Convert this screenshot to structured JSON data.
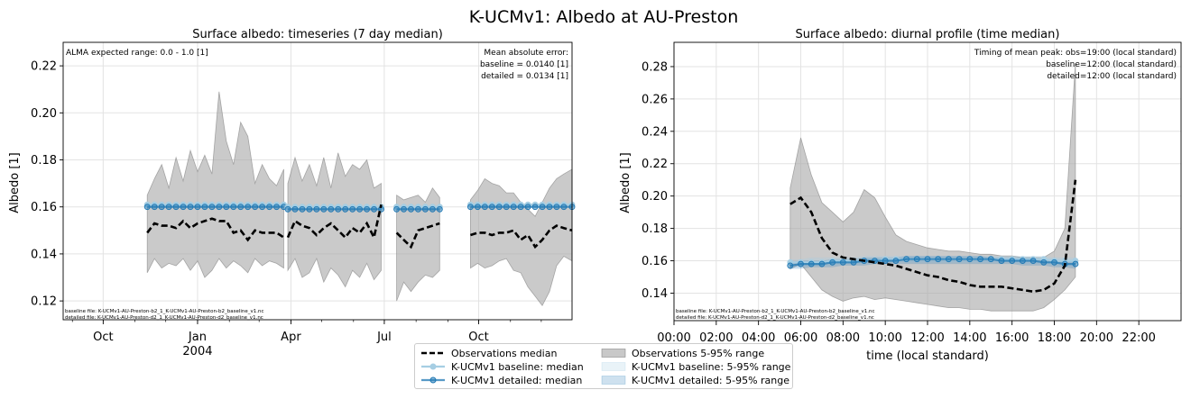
{
  "figure_title": "K-UCMv1: Albedo at AU-Preston",
  "colors": {
    "observation_line": "#000000",
    "observation_band": "#aaaaaa",
    "baseline": "#a6cee3",
    "detailed": "#1f78b4"
  },
  "chart_data": [
    {
      "type": "line",
      "title": "Surface albedo: timeseries (7 day median)",
      "xlabel": "",
      "ylabel": "Albedo [1]",
      "x_range": [
        "2003-08-23",
        "2004-12-31"
      ],
      "ylim": [
        0.112,
        0.23
      ],
      "grid": true,
      "xticks": [
        {
          "date": "2003-10-01",
          "label": "Oct"
        },
        {
          "date": "2004-01-01",
          "label": "Jan",
          "sublabel": "2004"
        },
        {
          "date": "2004-04-01",
          "label": "Apr"
        },
        {
          "date": "2004-07-01",
          "label": "Jul"
        },
        {
          "date": "2004-10-01",
          "label": "Oct"
        }
      ],
      "yticks": [
        0.12,
        0.14,
        0.16,
        0.18,
        0.2,
        0.22
      ],
      "annotations": {
        "range_note": "ALMA expected range: 0.0 - 1.0 [1]",
        "mae_title": "Mean absolute error:",
        "mae_baseline": "baseline = 0.0140 [1]",
        "mae_detailed": "detailed = 0.0134 [1]",
        "file_baseline": "baseline file: K-UCMv1-AU-Preston-b2_1_K-UCMv1-AU-Preston-b2_baseline_v1.nc",
        "file_detailed": "detailed file: K-UCMv1-AU-Preston-d2_1_K-UCMv1-AU-Preston-d2_baseline_v1.nc"
      },
      "segments": [
        {
          "x": [
            "2003-11-13",
            "2003-11-20",
            "2003-11-27",
            "2003-12-04",
            "2003-12-11",
            "2003-12-18",
            "2003-12-25",
            "2004-01-01",
            "2004-01-08",
            "2004-01-15",
            "2004-01-22",
            "2004-01-29",
            "2004-02-05",
            "2004-02-12",
            "2004-02-19",
            "2004-02-26",
            "2004-03-04",
            "2004-03-11",
            "2004-03-18",
            "2004-03-25"
          ],
          "obs_median": [
            0.149,
            0.153,
            0.152,
            0.152,
            0.151,
            0.154,
            0.151,
            0.153,
            0.154,
            0.155,
            0.154,
            0.154,
            0.149,
            0.15,
            0.146,
            0.15,
            0.149,
            0.149,
            0.149,
            0.147
          ],
          "obs_p5": [
            0.132,
            0.138,
            0.134,
            0.136,
            0.135,
            0.138,
            0.133,
            0.137,
            0.13,
            0.133,
            0.138,
            0.134,
            0.137,
            0.135,
            0.132,
            0.138,
            0.135,
            0.137,
            0.136,
            0.134
          ],
          "obs_p95": [
            0.165,
            0.172,
            0.178,
            0.168,
            0.181,
            0.171,
            0.184,
            0.175,
            0.182,
            0.174,
            0.209,
            0.188,
            0.178,
            0.196,
            0.19,
            0.17,
            0.178,
            0.172,
            0.169,
            0.176
          ],
          "baseline_median": [
            0.161,
            0.161,
            0.161,
            0.161,
            0.161,
            0.161,
            0.161,
            0.161,
            0.161,
            0.161,
            0.161,
            0.161,
            0.161,
            0.161,
            0.161,
            0.161,
            0.161,
            0.161,
            0.161,
            0.161
          ],
          "detailed_median": [
            0.16,
            0.16,
            0.16,
            0.16,
            0.16,
            0.16,
            0.16,
            0.16,
            0.16,
            0.16,
            0.16,
            0.16,
            0.16,
            0.16,
            0.16,
            0.16,
            0.16,
            0.16,
            0.16,
            0.16
          ]
        },
        {
          "x": [
            "2004-03-29",
            "2004-04-05",
            "2004-04-12",
            "2004-04-19",
            "2004-04-26",
            "2004-05-03",
            "2004-05-10",
            "2004-05-17",
            "2004-05-24",
            "2004-05-31",
            "2004-06-07",
            "2004-06-14",
            "2004-06-21",
            "2004-06-28"
          ],
          "obs_median": [
            0.147,
            0.154,
            0.152,
            0.151,
            0.148,
            0.151,
            0.153,
            0.15,
            0.147,
            0.151,
            0.149,
            0.153,
            0.147,
            0.161
          ],
          "obs_p5": [
            0.133,
            0.138,
            0.13,
            0.132,
            0.138,
            0.128,
            0.134,
            0.131,
            0.126,
            0.133,
            0.13,
            0.136,
            0.129,
            0.133
          ],
          "obs_p95": [
            0.17,
            0.181,
            0.171,
            0.178,
            0.169,
            0.181,
            0.168,
            0.183,
            0.173,
            0.178,
            0.176,
            0.18,
            0.168,
            0.17
          ],
          "baseline_median": [
            0.16,
            0.16,
            0.16,
            0.16,
            0.16,
            0.16,
            0.16,
            0.16,
            0.16,
            0.16,
            0.16,
            0.16,
            0.16,
            0.16
          ],
          "detailed_median": [
            0.159,
            0.159,
            0.159,
            0.159,
            0.159,
            0.159,
            0.159,
            0.159,
            0.159,
            0.159,
            0.159,
            0.159,
            0.159,
            0.159
          ]
        },
        {
          "x": [
            "2004-07-13",
            "2004-07-20",
            "2004-07-27",
            "2004-08-03",
            "2004-08-10",
            "2004-08-17",
            "2004-08-24"
          ],
          "obs_median": [
            0.149,
            0.146,
            0.143,
            0.15,
            0.151,
            0.152,
            0.153
          ],
          "obs_p5": [
            0.12,
            0.128,
            0.124,
            0.128,
            0.131,
            0.13,
            0.133
          ],
          "obs_p95": [
            0.165,
            0.163,
            0.164,
            0.165,
            0.162,
            0.168,
            0.164
          ],
          "baseline_median": [
            0.16,
            0.16,
            0.16,
            0.16,
            0.16,
            0.16,
            0.16
          ],
          "detailed_median": [
            0.159,
            0.159,
            0.159,
            0.159,
            0.159,
            0.159,
            0.159
          ]
        },
        {
          "x": [
            "2004-09-23",
            "2004-09-30",
            "2004-10-07",
            "2004-10-14",
            "2004-10-21",
            "2004-10-28",
            "2004-11-04",
            "2004-11-11",
            "2004-11-18",
            "2004-11-25",
            "2004-12-02",
            "2004-12-09",
            "2004-12-16",
            "2004-12-23",
            "2004-12-31"
          ],
          "obs_median": [
            0.148,
            0.149,
            0.149,
            0.148,
            0.149,
            0.149,
            0.15,
            0.146,
            0.148,
            0.143,
            0.146,
            0.15,
            0.152,
            0.151,
            0.15
          ],
          "obs_p5": [
            0.134,
            0.136,
            0.134,
            0.135,
            0.137,
            0.138,
            0.133,
            0.132,
            0.126,
            0.122,
            0.118,
            0.124,
            0.135,
            0.139,
            0.137
          ],
          "obs_p95": [
            0.163,
            0.167,
            0.172,
            0.17,
            0.169,
            0.166,
            0.166,
            0.162,
            0.159,
            0.156,
            0.162,
            0.168,
            0.172,
            0.174,
            0.176
          ],
          "baseline_median": [
            0.161,
            0.161,
            0.161,
            0.161,
            0.161,
            0.161,
            0.161,
            0.161,
            0.161,
            0.161,
            0.161,
            0.161,
            0.161,
            0.161,
            0.161
          ],
          "detailed_median": [
            0.16,
            0.16,
            0.16,
            0.16,
            0.16,
            0.16,
            0.16,
            0.16,
            0.16,
            0.16,
            0.16,
            0.16,
            0.16,
            0.16,
            0.16
          ]
        }
      ]
    },
    {
      "type": "line",
      "title": "Surface albedo: diurnal profile (time median)",
      "xlabel": "time (local standard)",
      "ylabel": "Albedo [1]",
      "xlim": [
        0,
        24
      ],
      "ylim": [
        0.123,
        0.295
      ],
      "grid": true,
      "xticks": [
        {
          "x": 0,
          "label": "00:00"
        },
        {
          "x": 2,
          "label": "02:00"
        },
        {
          "x": 4,
          "label": "04:00"
        },
        {
          "x": 6,
          "label": "06:00"
        },
        {
          "x": 8,
          "label": "08:00"
        },
        {
          "x": 10,
          "label": "10:00"
        },
        {
          "x": 12,
          "label": "12:00"
        },
        {
          "x": 14,
          "label": "14:00"
        },
        {
          "x": 16,
          "label": "16:00"
        },
        {
          "x": 18,
          "label": "18:00"
        },
        {
          "x": 20,
          "label": "20:00"
        },
        {
          "x": 22,
          "label": "22:00"
        }
      ],
      "yticks": [
        0.14,
        0.16,
        0.18,
        0.2,
        0.22,
        0.24,
        0.26,
        0.28
      ],
      "annotations": {
        "peak_title": "Timing of mean peak: obs=19:00 (local standard)",
        "peak_baseline": "baseline=12:00 (local standard)",
        "peak_detailed": "detailed=12:00 (local standard)",
        "file_baseline": "baseline file: K-UCMv1-AU-Preston-b2_1_K-UCMv1-AU-Preston-b2_baseline_v1.nc",
        "file_detailed": "detailed file: K-UCMv1-AU-Preston-d2_1_K-UCMv1-AU-Preston-d2_baseline_v1.nc"
      },
      "x": [
        5.5,
        6.0,
        6.5,
        7.0,
        7.5,
        8.0,
        8.5,
        9.0,
        9.5,
        10.0,
        10.5,
        11.0,
        11.5,
        12.0,
        12.5,
        13.0,
        13.5,
        14.0,
        14.5,
        15.0,
        15.5,
        16.0,
        16.5,
        17.0,
        17.5,
        18.0,
        18.5,
        19.0
      ],
      "obs_median": [
        0.195,
        0.199,
        0.19,
        0.174,
        0.165,
        0.162,
        0.161,
        0.16,
        0.159,
        0.158,
        0.157,
        0.155,
        0.153,
        0.151,
        0.15,
        0.148,
        0.147,
        0.145,
        0.144,
        0.144,
        0.144,
        0.143,
        0.142,
        0.141,
        0.142,
        0.146,
        0.157,
        0.21
      ],
      "obs_p5": [
        0.155,
        0.158,
        0.15,
        0.142,
        0.138,
        0.135,
        0.137,
        0.138,
        0.136,
        0.137,
        0.136,
        0.135,
        0.134,
        0.133,
        0.132,
        0.131,
        0.131,
        0.13,
        0.13,
        0.129,
        0.129,
        0.129,
        0.129,
        0.129,
        0.131,
        0.136,
        0.142,
        0.15
      ],
      "obs_p95": [
        0.205,
        0.236,
        0.213,
        0.196,
        0.19,
        0.184,
        0.19,
        0.204,
        0.199,
        0.187,
        0.176,
        0.172,
        0.17,
        0.168,
        0.167,
        0.166,
        0.166,
        0.165,
        0.164,
        0.164,
        0.163,
        0.163,
        0.162,
        0.162,
        0.162,
        0.166,
        0.18,
        0.282
      ],
      "baseline_median": [
        0.159,
        0.159,
        0.159,
        0.159,
        0.16,
        0.16,
        0.16,
        0.16,
        0.16,
        0.161,
        0.161,
        0.161,
        0.161,
        0.161,
        0.161,
        0.161,
        0.161,
        0.161,
        0.161,
        0.161,
        0.161,
        0.161,
        0.161,
        0.161,
        0.161,
        0.16,
        0.16,
        0.16
      ],
      "detailed_median": [
        0.157,
        0.158,
        0.158,
        0.158,
        0.159,
        0.159,
        0.159,
        0.16,
        0.16,
        0.16,
        0.16,
        0.161,
        0.161,
        0.161,
        0.161,
        0.161,
        0.161,
        0.161,
        0.161,
        0.161,
        0.16,
        0.16,
        0.16,
        0.16,
        0.159,
        0.159,
        0.158,
        0.158
      ],
      "baseline_p5": [
        0.156,
        0.156,
        0.157,
        0.157,
        0.157,
        0.158,
        0.158,
        0.158,
        0.159,
        0.159,
        0.159,
        0.159,
        0.159,
        0.159,
        0.159,
        0.159,
        0.159,
        0.159,
        0.159,
        0.159,
        0.159,
        0.159,
        0.158,
        0.158,
        0.158,
        0.157,
        0.157,
        0.156
      ],
      "baseline_p95": [
        0.161,
        0.161,
        0.162,
        0.162,
        0.162,
        0.162,
        0.162,
        0.163,
        0.163,
        0.163,
        0.163,
        0.163,
        0.163,
        0.163,
        0.163,
        0.163,
        0.163,
        0.163,
        0.163,
        0.163,
        0.163,
        0.163,
        0.163,
        0.163,
        0.163,
        0.162,
        0.162,
        0.162
      ],
      "detailed_p5": [
        0.155,
        0.155,
        0.156,
        0.156,
        0.156,
        0.157,
        0.157,
        0.157,
        0.158,
        0.158,
        0.158,
        0.158,
        0.158,
        0.158,
        0.158,
        0.158,
        0.158,
        0.158,
        0.158,
        0.158,
        0.158,
        0.158,
        0.157,
        0.157,
        0.157,
        0.156,
        0.156,
        0.155
      ],
      "detailed_p95": [
        0.159,
        0.16,
        0.16,
        0.16,
        0.161,
        0.161,
        0.161,
        0.162,
        0.162,
        0.162,
        0.162,
        0.163,
        0.163,
        0.163,
        0.163,
        0.163,
        0.163,
        0.163,
        0.163,
        0.162,
        0.162,
        0.162,
        0.162,
        0.162,
        0.161,
        0.161,
        0.16,
        0.16
      ]
    }
  ],
  "legend": {
    "items": [
      {
        "key": "obs_median",
        "label": "Observations median"
      },
      {
        "key": "baseline_median",
        "label": "K-UCMv1 baseline: median"
      },
      {
        "key": "detailed_median",
        "label": "K-UCMv1 detailed: median"
      },
      {
        "key": "obs_range",
        "label": "Observations 5-95% range"
      },
      {
        "key": "baseline_range",
        "label": "K-UCMv1 baseline: 5-95% range"
      },
      {
        "key": "detailed_range",
        "label": "K-UCMv1 detailed: 5-95% range"
      }
    ]
  }
}
